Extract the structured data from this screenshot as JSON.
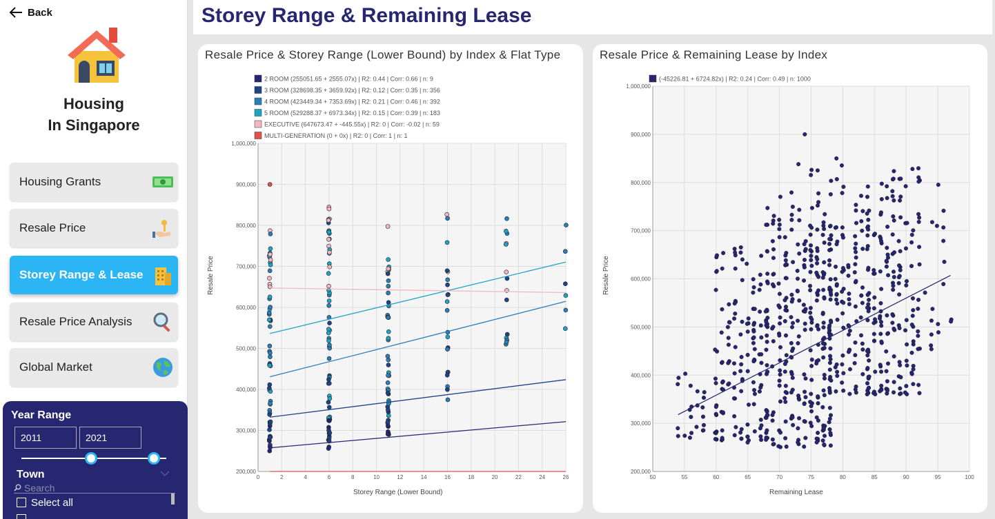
{
  "sidebar": {
    "back_label": "Back",
    "brand_line1": "Housing",
    "brand_line2": "In Singapore",
    "nav": [
      {
        "label": "Housing Grants",
        "icon": "money-icon"
      },
      {
        "label": "Resale Price",
        "icon": "key-hand-icon"
      },
      {
        "label": "Storey Range & Lease",
        "icon": "building-icon",
        "active": true
      },
      {
        "label": "Resale Price Analysis",
        "icon": "magnifier-icon"
      },
      {
        "label": "Global Market",
        "icon": "globe-icon"
      }
    ]
  },
  "filters": {
    "year_label": "Year Range",
    "year_from": "2011",
    "year_to": "2021",
    "town_label": "Town",
    "search_placeholder": "Search",
    "select_all": "Select all"
  },
  "header": {
    "title": "Storey Range & Remaining Lease"
  },
  "colors": {
    "navy": "#262671",
    "accent": "#2bb5f5",
    "room2": "#262671",
    "room3": "#1c4587",
    "room4": "#2a7fb8",
    "room5": "#1fa5c4",
    "executive": "#f4b6c2",
    "multigen": "#e0534a"
  },
  "chart_data": [
    {
      "type": "scatter",
      "title": "Resale Price & Storey Range (Lower Bound) by Index & Flat Type",
      "xlabel": "Storey Range (Lower Bound)",
      "ylabel": "Resale Price",
      "xlim": [
        0,
        26
      ],
      "ylim": [
        200000,
        1000000
      ],
      "xticks": [
        "0",
        "2",
        "4",
        "6",
        "8",
        "10",
        "12",
        "14",
        "16",
        "18",
        "20",
        "22",
        "24",
        "26"
      ],
      "yticks": [
        "200,000",
        "300,000",
        "400,000",
        "500,000",
        "600,000",
        "700,000",
        "800,000",
        "900,000",
        "1,000,000"
      ],
      "grid": true,
      "legend_position": "top",
      "legend": [
        {
          "label": "2 ROOM (255051.65 + 2555.07x) | R2: 0.44 | Corr: 0.66 | n: 9",
          "color_key": "room2"
        },
        {
          "label": "3 ROOM (328698.35 + 3659.92x) | R2: 0.12 | Corr: 0.35 | n: 356",
          "color_key": "room3"
        },
        {
          "label": "4 ROOM (423449.34 + 7353.69x) | R2: 0.21 | Corr: 0.46 | n: 392",
          "color_key": "room4"
        },
        {
          "label": "5 ROOM (529288.37 + 6973.34x) | R2: 0.15 | Corr: 0.39 | n: 183",
          "color_key": "room5"
        },
        {
          "label": "EXECUTIVE (647673.47 + -445.55x) | R2: 0 | Corr: -0.02 | n: 59",
          "color_key": "executive"
        },
        {
          "label": "MULTI-GENERATION (0 + 0x) | R2: 0 | Corr: 1 | n: 1",
          "color_key": "multigen"
        }
      ],
      "trendlines": [
        {
          "name": "2 ROOM",
          "intercept": 255051.65,
          "slope": 2555.07,
          "color_key": "room2"
        },
        {
          "name": "3 ROOM",
          "intercept": 328698.35,
          "slope": 3659.92,
          "color_key": "room3"
        },
        {
          "name": "4 ROOM",
          "intercept": 423449.34,
          "slope": 7353.69,
          "color_key": "room4"
        },
        {
          "name": "5 ROOM",
          "intercept": 529288.37,
          "slope": 6973.34,
          "color_key": "room5"
        },
        {
          "name": "EXECUTIVE",
          "intercept": 647673.47,
          "slope": -445.55,
          "color_key": "executive"
        },
        {
          "name": "MULTI-GENERATION",
          "intercept": 0,
          "slope": 0,
          "color_key": "multigen"
        }
      ],
      "columns": [
        {
          "x": 1,
          "min": 250000,
          "max": 790000,
          "n": 60,
          "extra": [
            900000
          ]
        },
        {
          "x": 6,
          "min": 250000,
          "max": 850000,
          "n": 60,
          "extra": []
        },
        {
          "x": 11,
          "min": 290000,
          "max": 830000,
          "n": 50,
          "extra": []
        },
        {
          "x": 16,
          "min": 350000,
          "max": 830000,
          "n": 22,
          "extra": []
        },
        {
          "x": 21,
          "min": 505000,
          "max": 825000,
          "n": 14,
          "extra": []
        },
        {
          "x": 26,
          "min": 525000,
          "max": 830000,
          "n": 6,
          "extra": []
        }
      ]
    },
    {
      "type": "scatter",
      "title": "Resale Price & Remaining Lease by Index",
      "xlabel": "Remaining Lease",
      "ylabel": "Resale Price",
      "xlim": [
        50,
        100
      ],
      "ylim": [
        200000,
        1000000
      ],
      "xticks": [
        "50",
        "55",
        "60",
        "65",
        "70",
        "75",
        "80",
        "85",
        "90",
        "95",
        "100"
      ],
      "yticks": [
        "200,000",
        "300,000",
        "400,000",
        "500,000",
        "600,000",
        "700,000",
        "800,000",
        "900,000",
        "1,000,000"
      ],
      "grid": true,
      "legend_position": "top",
      "legend": [
        {
          "label": "(-45226.81 + 6724.82x) | R2: 0.24 | Corr: 0.49 | n: 1000",
          "color_key": "navy"
        }
      ],
      "trendline": {
        "intercept": -45226.81,
        "slope": 6724.82,
        "x_range": [
          54,
          97
        ]
      },
      "clusters": [
        {
          "x": [
            54,
            58
          ],
          "y": [
            270000,
            410000
          ],
          "n": 22
        },
        {
          "x": [
            60,
            68
          ],
          "y": [
            260000,
            670000
          ],
          "n": 150
        },
        {
          "x": [
            68,
            78
          ],
          "y": [
            250000,
            760000
          ],
          "n": 250
        },
        {
          "x": [
            70,
            80
          ],
          "y": [
            480000,
            850000
          ],
          "n": 60
        },
        {
          "x": [
            78,
            84
          ],
          "y": [
            360000,
            780000
          ],
          "n": 110
        },
        {
          "x": [
            84,
            92
          ],
          "y": [
            360000,
            830000
          ],
          "n": 180
        },
        {
          "x": [
            92,
            97
          ],
          "y": [
            440000,
            830000
          ],
          "n": 20
        }
      ],
      "points": [
        {
          "x": 74,
          "y": 900000
        },
        {
          "x": 79,
          "y": 850000
        },
        {
          "x": 73,
          "y": 838000
        },
        {
          "x": 91,
          "y": 828000
        }
      ]
    }
  ]
}
